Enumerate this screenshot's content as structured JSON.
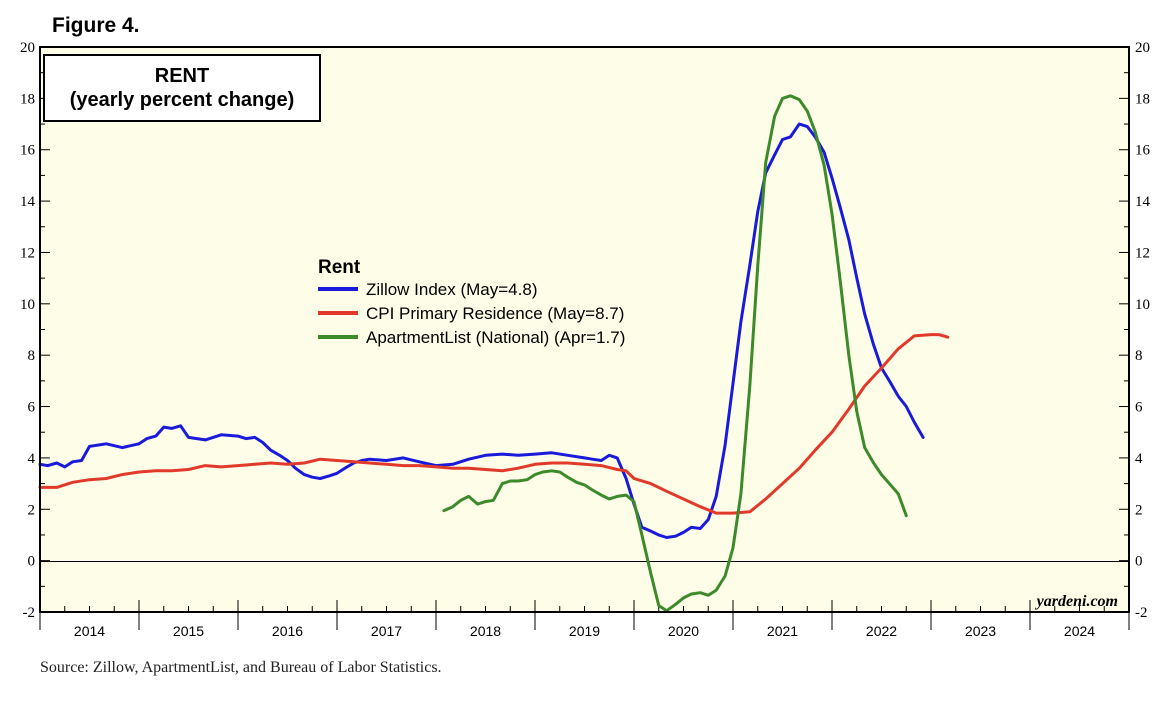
{
  "figure_label": "Figure 4.",
  "source_note": "Source: Zillow, ApartmentList, and Bureau of Labor Statistics.",
  "chart_data": {
    "type": "line",
    "title_line1": "RENT",
    "title_line2": "(yearly percent change)",
    "legend_title": "Rent",
    "legend_placement": "center-left",
    "credit": "yardeni.com",
    "background_color": "#fdfde8",
    "ylim": [
      -2,
      20
    ],
    "yticks": [
      -2,
      0,
      2,
      4,
      6,
      8,
      10,
      12,
      14,
      16,
      18,
      20
    ],
    "xlim": [
      2014.0,
      2025.0
    ],
    "x_labels": [
      "2014",
      "2015",
      "2016",
      "2017",
      "2018",
      "2019",
      "2020",
      "2021",
      "2022",
      "2023",
      "2024"
    ],
    "zero_line": true,
    "series": [
      {
        "name": "Zillow Index (May=4.8)",
        "color": "#1a1adb",
        "points": [
          [
            2014.0,
            3.75
          ],
          [
            2014.08,
            3.7
          ],
          [
            2014.17,
            3.8
          ],
          [
            2014.25,
            3.65
          ],
          [
            2014.33,
            3.85
          ],
          [
            2014.42,
            3.9
          ],
          [
            2014.5,
            4.45
          ],
          [
            2014.67,
            4.55
          ],
          [
            2014.83,
            4.4
          ],
          [
            2015.0,
            4.55
          ],
          [
            2015.08,
            4.75
          ],
          [
            2015.17,
            4.85
          ],
          [
            2015.25,
            5.2
          ],
          [
            2015.33,
            5.15
          ],
          [
            2015.42,
            5.25
          ],
          [
            2015.5,
            4.8
          ],
          [
            2015.67,
            4.7
          ],
          [
            2015.83,
            4.9
          ],
          [
            2016.0,
            4.85
          ],
          [
            2016.08,
            4.75
          ],
          [
            2016.17,
            4.8
          ],
          [
            2016.25,
            4.6
          ],
          [
            2016.33,
            4.3
          ],
          [
            2016.42,
            4.1
          ],
          [
            2016.5,
            3.9
          ],
          [
            2016.58,
            3.6
          ],
          [
            2016.67,
            3.35
          ],
          [
            2016.75,
            3.25
          ],
          [
            2016.83,
            3.2
          ],
          [
            2016.92,
            3.3
          ],
          [
            2017.0,
            3.4
          ],
          [
            2017.08,
            3.6
          ],
          [
            2017.17,
            3.8
          ],
          [
            2017.25,
            3.9
          ],
          [
            2017.33,
            3.95
          ],
          [
            2017.5,
            3.9
          ],
          [
            2017.67,
            4.0
          ],
          [
            2017.83,
            3.85
          ],
          [
            2018.0,
            3.7
          ],
          [
            2018.17,
            3.75
          ],
          [
            2018.33,
            3.95
          ],
          [
            2018.5,
            4.1
          ],
          [
            2018.67,
            4.15
          ],
          [
            2018.83,
            4.1
          ],
          [
            2019.0,
            4.15
          ],
          [
            2019.17,
            4.2
          ],
          [
            2019.33,
            4.1
          ],
          [
            2019.5,
            4.0
          ],
          [
            2019.58,
            3.95
          ],
          [
            2019.67,
            3.9
          ],
          [
            2019.75,
            4.1
          ],
          [
            2019.83,
            4.0
          ],
          [
            2019.92,
            3.2
          ],
          [
            2020.0,
            2.2
          ],
          [
            2020.08,
            1.3
          ],
          [
            2020.17,
            1.15
          ],
          [
            2020.25,
            1.0
          ],
          [
            2020.33,
            0.9
          ],
          [
            2020.42,
            0.95
          ],
          [
            2020.5,
            1.1
          ],
          [
            2020.58,
            1.3
          ],
          [
            2020.67,
            1.25
          ],
          [
            2020.75,
            1.6
          ],
          [
            2020.83,
            2.5
          ],
          [
            2020.92,
            4.5
          ],
          [
            2021.0,
            6.9
          ],
          [
            2021.08,
            9.3
          ],
          [
            2021.17,
            11.5
          ],
          [
            2021.25,
            13.6
          ],
          [
            2021.33,
            15.1
          ],
          [
            2021.42,
            15.8
          ],
          [
            2021.5,
            16.4
          ],
          [
            2021.58,
            16.5
          ],
          [
            2021.67,
            17.0
          ],
          [
            2021.75,
            16.9
          ],
          [
            2021.83,
            16.5
          ],
          [
            2021.92,
            15.9
          ],
          [
            2022.0,
            14.9
          ],
          [
            2022.08,
            13.8
          ],
          [
            2022.17,
            12.5
          ],
          [
            2022.25,
            11.0
          ],
          [
            2022.33,
            9.6
          ],
          [
            2022.42,
            8.4
          ],
          [
            2022.5,
            7.5
          ],
          [
            2022.58,
            7.0
          ],
          [
            2022.67,
            6.4
          ],
          [
            2022.75,
            6.0
          ],
          [
            2022.83,
            5.4
          ],
          [
            2022.92,
            4.8
          ]
        ]
      },
      {
        "name": "CPI Primary Residence (May=8.7)",
        "color": "#e23a2a",
        "points": [
          [
            2014.0,
            2.85
          ],
          [
            2014.17,
            2.85
          ],
          [
            2014.33,
            3.05
          ],
          [
            2014.5,
            3.15
          ],
          [
            2014.67,
            3.2
          ],
          [
            2014.83,
            3.35
          ],
          [
            2015.0,
            3.45
          ],
          [
            2015.17,
            3.5
          ],
          [
            2015.33,
            3.5
          ],
          [
            2015.5,
            3.55
          ],
          [
            2015.67,
            3.7
          ],
          [
            2015.83,
            3.65
          ],
          [
            2016.0,
            3.7
          ],
          [
            2016.17,
            3.75
          ],
          [
            2016.33,
            3.8
          ],
          [
            2016.5,
            3.75
          ],
          [
            2016.67,
            3.8
          ],
          [
            2016.83,
            3.95
          ],
          [
            2017.0,
            3.9
          ],
          [
            2017.17,
            3.85
          ],
          [
            2017.33,
            3.8
          ],
          [
            2017.5,
            3.75
          ],
          [
            2017.67,
            3.7
          ],
          [
            2017.83,
            3.7
          ],
          [
            2018.0,
            3.65
          ],
          [
            2018.17,
            3.6
          ],
          [
            2018.33,
            3.6
          ],
          [
            2018.5,
            3.55
          ],
          [
            2018.67,
            3.5
          ],
          [
            2018.83,
            3.6
          ],
          [
            2019.0,
            3.75
          ],
          [
            2019.17,
            3.8
          ],
          [
            2019.33,
            3.8
          ],
          [
            2019.5,
            3.75
          ],
          [
            2019.67,
            3.7
          ],
          [
            2019.83,
            3.55
          ],
          [
            2019.92,
            3.5
          ],
          [
            2020.0,
            3.2
          ],
          [
            2020.17,
            3.0
          ],
          [
            2020.33,
            2.7
          ],
          [
            2020.5,
            2.4
          ],
          [
            2020.67,
            2.1
          ],
          [
            2020.83,
            1.85
          ],
          [
            2021.0,
            1.85
          ],
          [
            2021.17,
            1.9
          ],
          [
            2021.33,
            2.4
          ],
          [
            2021.5,
            3.0
          ],
          [
            2021.67,
            3.6
          ],
          [
            2021.83,
            4.3
          ],
          [
            2022.0,
            5.0
          ],
          [
            2022.17,
            5.9
          ],
          [
            2022.33,
            6.8
          ],
          [
            2022.5,
            7.5
          ],
          [
            2022.67,
            8.25
          ],
          [
            2022.83,
            8.75
          ],
          [
            2023.0,
            8.8
          ],
          [
            2023.08,
            8.8
          ],
          [
            2023.17,
            8.7
          ]
        ]
      },
      {
        "name": "ApartmentList (National) (Apr=1.7)",
        "color": "#3d8a2a",
        "points": [
          [
            2018.08,
            1.95
          ],
          [
            2018.17,
            2.1
          ],
          [
            2018.25,
            2.35
          ],
          [
            2018.33,
            2.5
          ],
          [
            2018.42,
            2.2
          ],
          [
            2018.5,
            2.3
          ],
          [
            2018.58,
            2.35
          ],
          [
            2018.67,
            3.0
          ],
          [
            2018.75,
            3.1
          ],
          [
            2018.83,
            3.1
          ],
          [
            2018.92,
            3.15
          ],
          [
            2019.0,
            3.35
          ],
          [
            2019.08,
            3.45
          ],
          [
            2019.17,
            3.5
          ],
          [
            2019.25,
            3.45
          ],
          [
            2019.33,
            3.25
          ],
          [
            2019.42,
            3.05
          ],
          [
            2019.5,
            2.95
          ],
          [
            2019.58,
            2.75
          ],
          [
            2019.67,
            2.55
          ],
          [
            2019.75,
            2.4
          ],
          [
            2019.83,
            2.5
          ],
          [
            2019.92,
            2.55
          ],
          [
            2020.0,
            2.3
          ],
          [
            2020.08,
            1.0
          ],
          [
            2020.17,
            -0.5
          ],
          [
            2020.25,
            -1.75
          ],
          [
            2020.33,
            -1.95
          ],
          [
            2020.42,
            -1.7
          ],
          [
            2020.5,
            -1.45
          ],
          [
            2020.58,
            -1.3
          ],
          [
            2020.67,
            -1.25
          ],
          [
            2020.75,
            -1.35
          ],
          [
            2020.83,
            -1.15
          ],
          [
            2020.92,
            -0.6
          ],
          [
            2021.0,
            0.5
          ],
          [
            2021.08,
            2.6
          ],
          [
            2021.17,
            6.8
          ],
          [
            2021.25,
            11.5
          ],
          [
            2021.33,
            15.5
          ],
          [
            2021.42,
            17.3
          ],
          [
            2021.5,
            18.0
          ],
          [
            2021.58,
            18.1
          ],
          [
            2021.67,
            17.95
          ],
          [
            2021.75,
            17.5
          ],
          [
            2021.83,
            16.7
          ],
          [
            2021.92,
            15.4
          ],
          [
            2022.0,
            13.5
          ],
          [
            2022.08,
            11.0
          ],
          [
            2022.17,
            8.0
          ],
          [
            2022.25,
            5.8
          ],
          [
            2022.33,
            4.4
          ],
          [
            2022.42,
            3.8
          ],
          [
            2022.5,
            3.35
          ],
          [
            2022.58,
            3.0
          ],
          [
            2022.67,
            2.6
          ],
          [
            2022.75,
            1.75
          ]
        ]
      }
    ]
  }
}
